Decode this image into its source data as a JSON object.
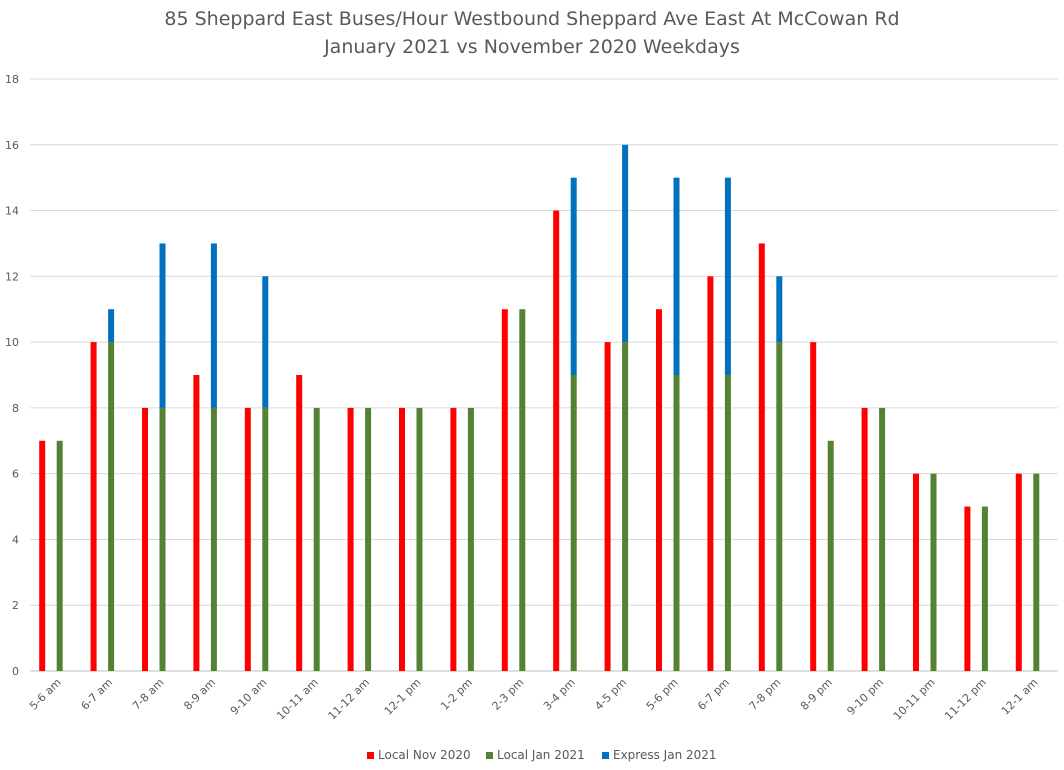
{
  "chart_data": {
    "type": "bar",
    "title": "85 Sheppard East Buses/Hour Westbound Sheppard Ave East At McCowan Rd",
    "subtitle": "January 2021 vs November 2020 Weekdays",
    "xlabel": "",
    "ylabel": "",
    "ylim": [
      0,
      18
    ],
    "yticks": [
      0,
      2,
      4,
      6,
      8,
      10,
      12,
      14,
      16,
      18
    ],
    "grid": true,
    "legend_position": "bottom",
    "categories": [
      "5-6 am",
      "6-7 am",
      "7-8 am",
      "8-9 am",
      "9-10 am",
      "10-11 am",
      "11-12 am",
      "12-1 pm",
      "1-2 pm",
      "2-3 pm",
      "3-4 pm",
      "4-5 pm",
      "5-6 pm",
      "6-7 pm",
      "7-8 pm",
      "8-9 pm",
      "9-10 pm",
      "10-11 pm",
      "11-12 pm",
      "12-1 am"
    ],
    "series": [
      {
        "name": "Local Nov 2020",
        "color": "#ff0000",
        "stack": "nov",
        "values": [
          7,
          10,
          8,
          9,
          8,
          9,
          8,
          8,
          8,
          11,
          14,
          10,
          11,
          12,
          13,
          10,
          8,
          6,
          5,
          6
        ]
      },
      {
        "name": "Local Jan 2021",
        "color": "#548235",
        "stack": "jan",
        "values": [
          7,
          10,
          8,
          8,
          8,
          8,
          8,
          8,
          8,
          11,
          9,
          10,
          9,
          9,
          10,
          7,
          8,
          6,
          5,
          6
        ]
      },
      {
        "name": "Express Jan 2021",
        "color": "#0070c0",
        "stack": "jan",
        "values": [
          0,
          1,
          5,
          5,
          4,
          0,
          0,
          0,
          0,
          0,
          6,
          6,
          6,
          6,
          2,
          0,
          0,
          0,
          0,
          0
        ]
      }
    ]
  }
}
